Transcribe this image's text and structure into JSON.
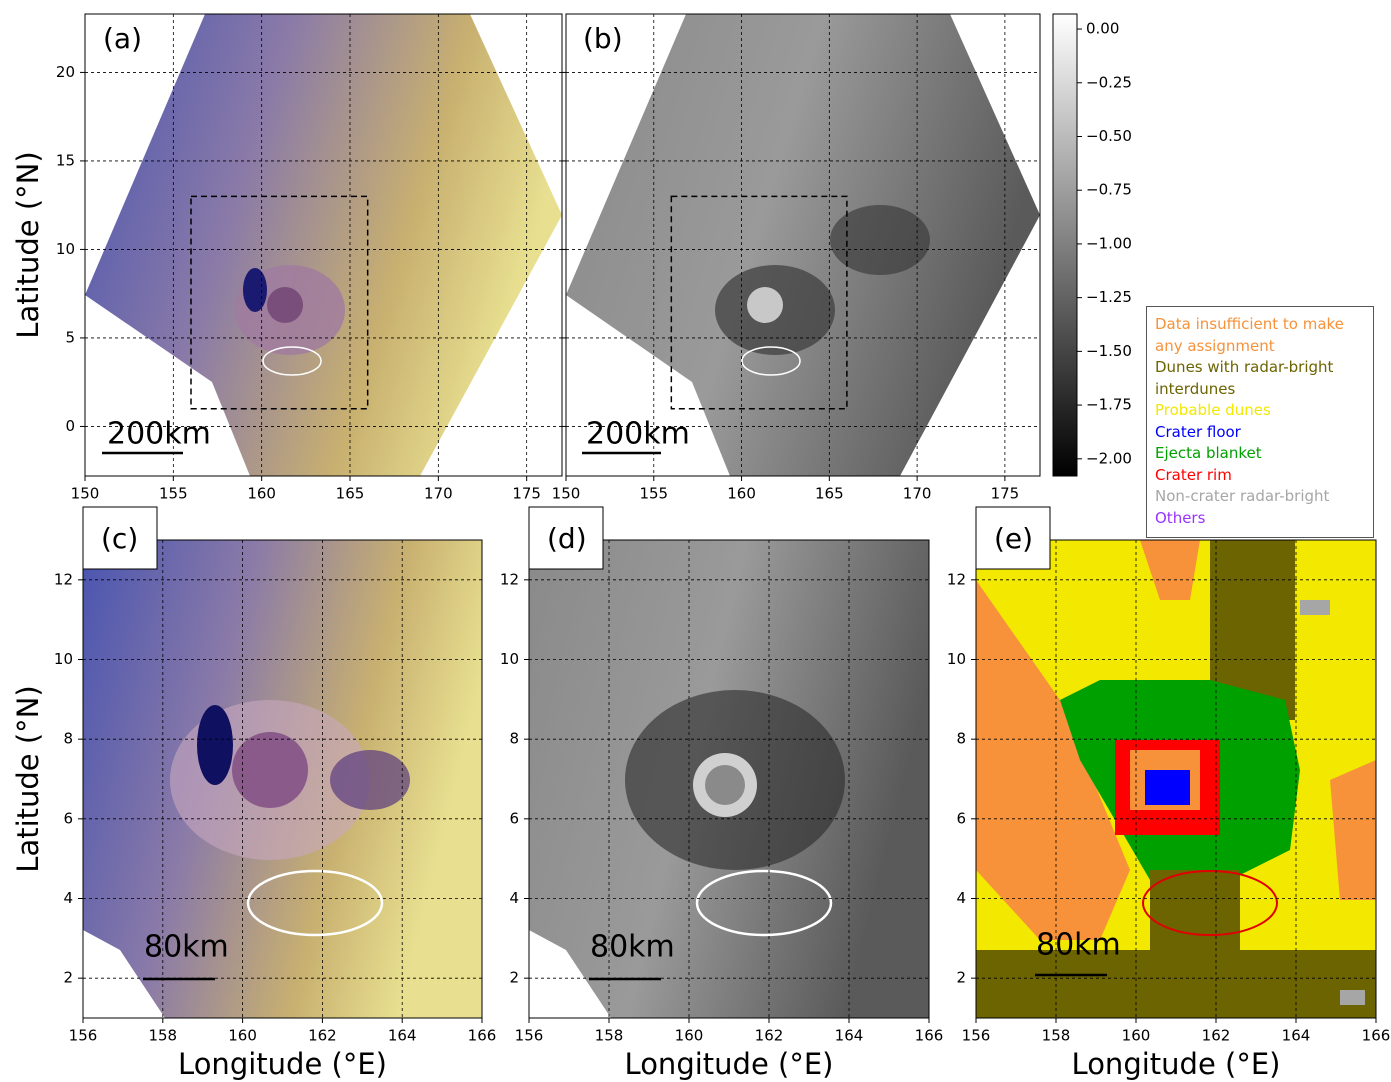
{
  "panels": [
    {
      "label": "(a)",
      "scale_bar": "200km",
      "xlim": [
        150,
        177
      ],
      "ylim": [
        -2.8,
        23.3
      ],
      "xticks": [
        150,
        155,
        160,
        165,
        170,
        175
      ],
      "yticks": [
        0,
        5,
        10,
        15,
        20
      ],
      "ytick_labels": true,
      "ylabel": "Latitude (°N)",
      "zoom_box": {
        "xlim": [
          156,
          166
        ],
        "ylim": [
          1,
          13
        ]
      }
    },
    {
      "label": "(b)",
      "scale_bar": "200km",
      "xlim": [
        150,
        177
      ],
      "ylim": [
        -2.8,
        23.3
      ],
      "xticks": [
        150,
        155,
        160,
        165,
        170,
        175
      ],
      "yticks": [
        0,
        5,
        10,
        15,
        20
      ],
      "ytick_labels": false,
      "zoom_box": {
        "xlim": [
          156,
          166
        ],
        "ylim": [
          1,
          13
        ]
      }
    },
    {
      "label": "(c)",
      "scale_bar": "80km",
      "xlim": [
        156,
        166
      ],
      "ylim": [
        1,
        13
      ],
      "xticks": [
        156,
        158,
        160,
        162,
        164,
        166
      ],
      "yticks": [
        2,
        4,
        6,
        8,
        10,
        12
      ],
      "ytick_labels": true,
      "ylabel": "Latitude (°N)",
      "xlabel": "Longitude (°E)"
    },
    {
      "label": "(d)",
      "scale_bar": "80km",
      "xlim": [
        156,
        166
      ],
      "ylim": [
        1,
        13
      ],
      "xticks": [
        156,
        158,
        160,
        162,
        164,
        166
      ],
      "yticks": [
        2,
        4,
        6,
        8,
        10,
        12
      ],
      "ytick_labels": true,
      "xlabel": "Longitude (°E)"
    },
    {
      "label": "(e)",
      "scale_bar": "80km",
      "xlim": [
        156,
        166
      ],
      "ylim": [
        1,
        13
      ],
      "xticks": [
        156,
        158,
        160,
        162,
        164,
        166
      ],
      "yticks": [
        2,
        4,
        6,
        8,
        10,
        12
      ],
      "ytick_labels": true,
      "xlabel": "Longitude (°E)"
    }
  ],
  "colorbar": {
    "ylim": [
      -2.08,
      0.07
    ],
    "ticks": [
      {
        "value": 0,
        "label": "0.00"
      },
      {
        "value": -0.25,
        "label": "−0.25"
      },
      {
        "value": -0.5,
        "label": "−0.50"
      },
      {
        "value": -0.75,
        "label": "−0.75"
      },
      {
        "value": -1,
        "label": "−1.00"
      },
      {
        "value": -1.25,
        "label": "−1.25"
      },
      {
        "value": -1.5,
        "label": "−1.50"
      },
      {
        "value": -1.75,
        "label": "−1.75"
      },
      {
        "value": -2,
        "label": "−2.00"
      }
    ]
  },
  "legend": [
    {
      "label": "Data insufficient to make any assignment",
      "color": "#f7923a"
    },
    {
      "label": "Dunes with radar-bright interdunes",
      "color": "#6b6400"
    },
    {
      "label": "Probable dunes",
      "color": "#f2e800"
    },
    {
      "label": "Crater floor",
      "color": "#0000ff"
    },
    {
      "label": "Ejecta blanket",
      "color": "#00a000"
    },
    {
      "label": "Crater rim",
      "color": "#ff0000"
    },
    {
      "label": "Non-crater radar-bright",
      "color": "#a6a6a6"
    },
    {
      "label": "Others",
      "color": "#9933ff"
    }
  ]
}
